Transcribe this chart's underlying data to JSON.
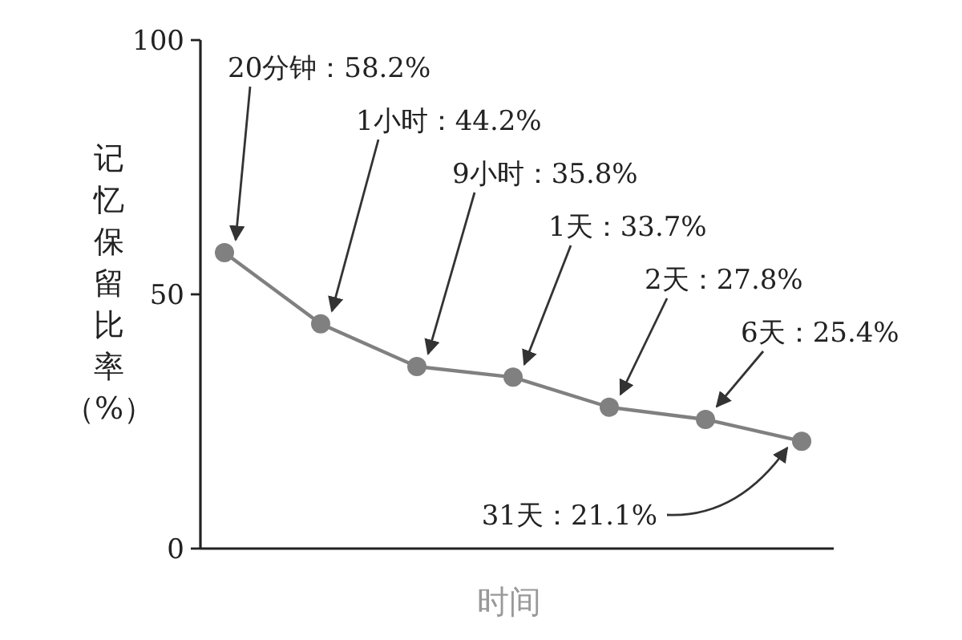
{
  "chart_data": {
    "type": "line",
    "categories": [
      null,
      null,
      null,
      null,
      null,
      null,
      null
    ],
    "values": [
      58.2,
      44.2,
      35.8,
      33.7,
      27.8,
      25.4,
      21.1
    ],
    "value_labels": [
      "20分钟：58.2%",
      "1小时：44.2%",
      "9小时：35.8%",
      "1天：33.7%",
      "2天：27.8%",
      "6天：25.4%",
      "31天：21.1%"
    ],
    "color": "#808080",
    "marker": "circle",
    "ylim": [
      0,
      100
    ],
    "yticks": [
      0,
      50,
      100
    ],
    "tick_labels": "y",
    "ylabel": "记忆保留比率（%）",
    "xlabel": "时间"
  }
}
